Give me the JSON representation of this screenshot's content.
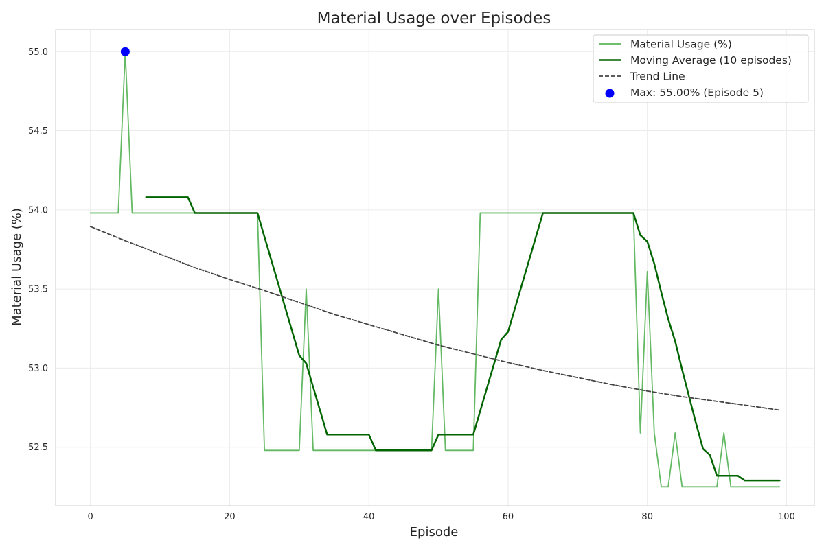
{
  "chart_data": {
    "type": "line",
    "title": "Material Usage over Episodes",
    "xlabel": "Episode",
    "ylabel": "Material Usage (%)",
    "xlim": [
      -5,
      104
    ],
    "ylim": [
      52.13,
      55.14
    ],
    "xticks": [
      0,
      20,
      40,
      60,
      80,
      100
    ],
    "yticks": [
      52.5,
      53.0,
      53.5,
      54.0,
      54.5,
      55.0
    ],
    "grid": true,
    "legend_position": "top-right",
    "series": [
      {
        "name": "Material Usage (%)",
        "kind": "line",
        "color": "#5cb55c",
        "x": [
          0,
          1,
          2,
          3,
          4,
          5,
          6,
          7,
          8,
          9,
          10,
          11,
          12,
          13,
          14,
          15,
          16,
          17,
          18,
          19,
          20,
          21,
          22,
          23,
          24,
          25,
          26,
          27,
          28,
          29,
          30,
          31,
          32,
          33,
          34,
          35,
          36,
          37,
          38,
          39,
          40,
          41,
          42,
          43,
          44,
          45,
          46,
          47,
          48,
          49,
          50,
          51,
          52,
          53,
          54,
          55,
          56,
          57,
          58,
          59,
          60,
          61,
          62,
          63,
          64,
          65,
          66,
          67,
          68,
          69,
          70,
          71,
          72,
          73,
          74,
          75,
          76,
          77,
          78,
          79,
          80,
          81,
          82,
          83,
          84,
          85,
          86,
          87,
          88,
          89,
          90,
          91,
          92,
          93,
          94,
          95,
          96,
          97,
          98,
          99
        ],
        "y": [
          53.98,
          53.98,
          53.98,
          53.98,
          53.98,
          55.0,
          53.98,
          53.98,
          53.98,
          53.98,
          53.98,
          53.98,
          53.98,
          53.98,
          53.98,
          53.98,
          53.98,
          53.98,
          53.98,
          53.98,
          53.98,
          53.98,
          53.98,
          53.98,
          53.98,
          52.48,
          52.48,
          52.48,
          52.48,
          52.48,
          52.48,
          53.5,
          52.48,
          52.48,
          52.48,
          52.48,
          52.48,
          52.48,
          52.48,
          52.48,
          52.48,
          52.48,
          52.48,
          52.48,
          52.48,
          52.48,
          52.48,
          52.48,
          52.48,
          52.48,
          53.5,
          52.48,
          52.48,
          52.48,
          52.48,
          52.48,
          53.98,
          53.98,
          53.98,
          53.98,
          53.98,
          53.98,
          53.98,
          53.98,
          53.98,
          53.98,
          53.98,
          53.98,
          53.98,
          53.98,
          53.98,
          53.98,
          53.98,
          53.98,
          53.98,
          53.98,
          53.98,
          53.98,
          53.98,
          52.59,
          53.61,
          52.59,
          52.25,
          52.25,
          52.59,
          52.25,
          52.25,
          52.25,
          52.25,
          52.25,
          52.25,
          52.59,
          52.25,
          52.25,
          52.25,
          52.25,
          52.25,
          52.25,
          52.25,
          52.25
        ]
      },
      {
        "name": "Moving Average (10 episodes)",
        "kind": "line",
        "color": "#006400",
        "x": [
          8,
          9,
          10,
          11,
          12,
          13,
          14,
          15,
          16,
          17,
          18,
          19,
          20,
          21,
          22,
          23,
          24,
          25,
          26,
          27,
          28,
          29,
          30,
          31,
          32,
          33,
          34,
          35,
          36,
          37,
          38,
          39,
          40,
          41,
          42,
          43,
          44,
          45,
          46,
          47,
          48,
          49,
          50,
          51,
          52,
          53,
          54,
          55,
          56,
          57,
          58,
          59,
          60,
          61,
          62,
          63,
          64,
          65,
          66,
          67,
          68,
          69,
          70,
          71,
          72,
          73,
          74,
          75,
          76,
          77,
          78,
          79,
          80,
          81,
          82,
          83,
          84,
          85,
          86,
          87,
          88,
          89,
          90,
          91,
          92,
          93,
          94,
          95,
          96,
          97,
          98,
          99
        ],
        "y": [
          54.08,
          54.08,
          54.08,
          54.08,
          54.08,
          54.08,
          54.08,
          53.98,
          53.98,
          53.98,
          53.98,
          53.98,
          53.98,
          53.98,
          53.98,
          53.98,
          53.98,
          53.83,
          53.68,
          53.53,
          53.38,
          53.23,
          53.08,
          53.03,
          52.88,
          52.73,
          52.58,
          52.58,
          52.58,
          52.58,
          52.58,
          52.58,
          52.58,
          52.48,
          52.48,
          52.48,
          52.48,
          52.48,
          52.48,
          52.48,
          52.48,
          52.48,
          52.58,
          52.58,
          52.58,
          52.58,
          52.58,
          52.58,
          52.73,
          52.88,
          53.03,
          53.18,
          53.23,
          53.38,
          53.53,
          53.68,
          53.83,
          53.98,
          53.98,
          53.98,
          53.98,
          53.98,
          53.98,
          53.98,
          53.98,
          53.98,
          53.98,
          53.98,
          53.98,
          53.98,
          53.98,
          53.84,
          53.8,
          53.66,
          53.48,
          53.31,
          53.17,
          52.99,
          52.82,
          52.65,
          52.49,
          52.45,
          52.32,
          52.32,
          52.32,
          52.32,
          52.29,
          52.29,
          52.29,
          52.29,
          52.29,
          52.29
        ]
      },
      {
        "name": "Trend Line",
        "kind": "dashed-line",
        "color": "#444444",
        "x": [
          0,
          5,
          10,
          15,
          20,
          25,
          30,
          35,
          40,
          45,
          50,
          55,
          60,
          65,
          70,
          75,
          80,
          85,
          90,
          95,
          99
        ],
        "y": [
          53.895,
          53.805,
          53.72,
          53.635,
          53.56,
          53.49,
          53.415,
          53.34,
          53.275,
          53.21,
          53.145,
          53.09,
          53.035,
          52.985,
          52.94,
          52.895,
          52.855,
          52.82,
          52.79,
          52.76,
          52.735
        ]
      },
      {
        "name": "Max: 55.00% (Episode 5)",
        "kind": "marker",
        "color": "#0000ff",
        "x": [
          5
        ],
        "y": [
          55.0
        ]
      }
    ]
  }
}
